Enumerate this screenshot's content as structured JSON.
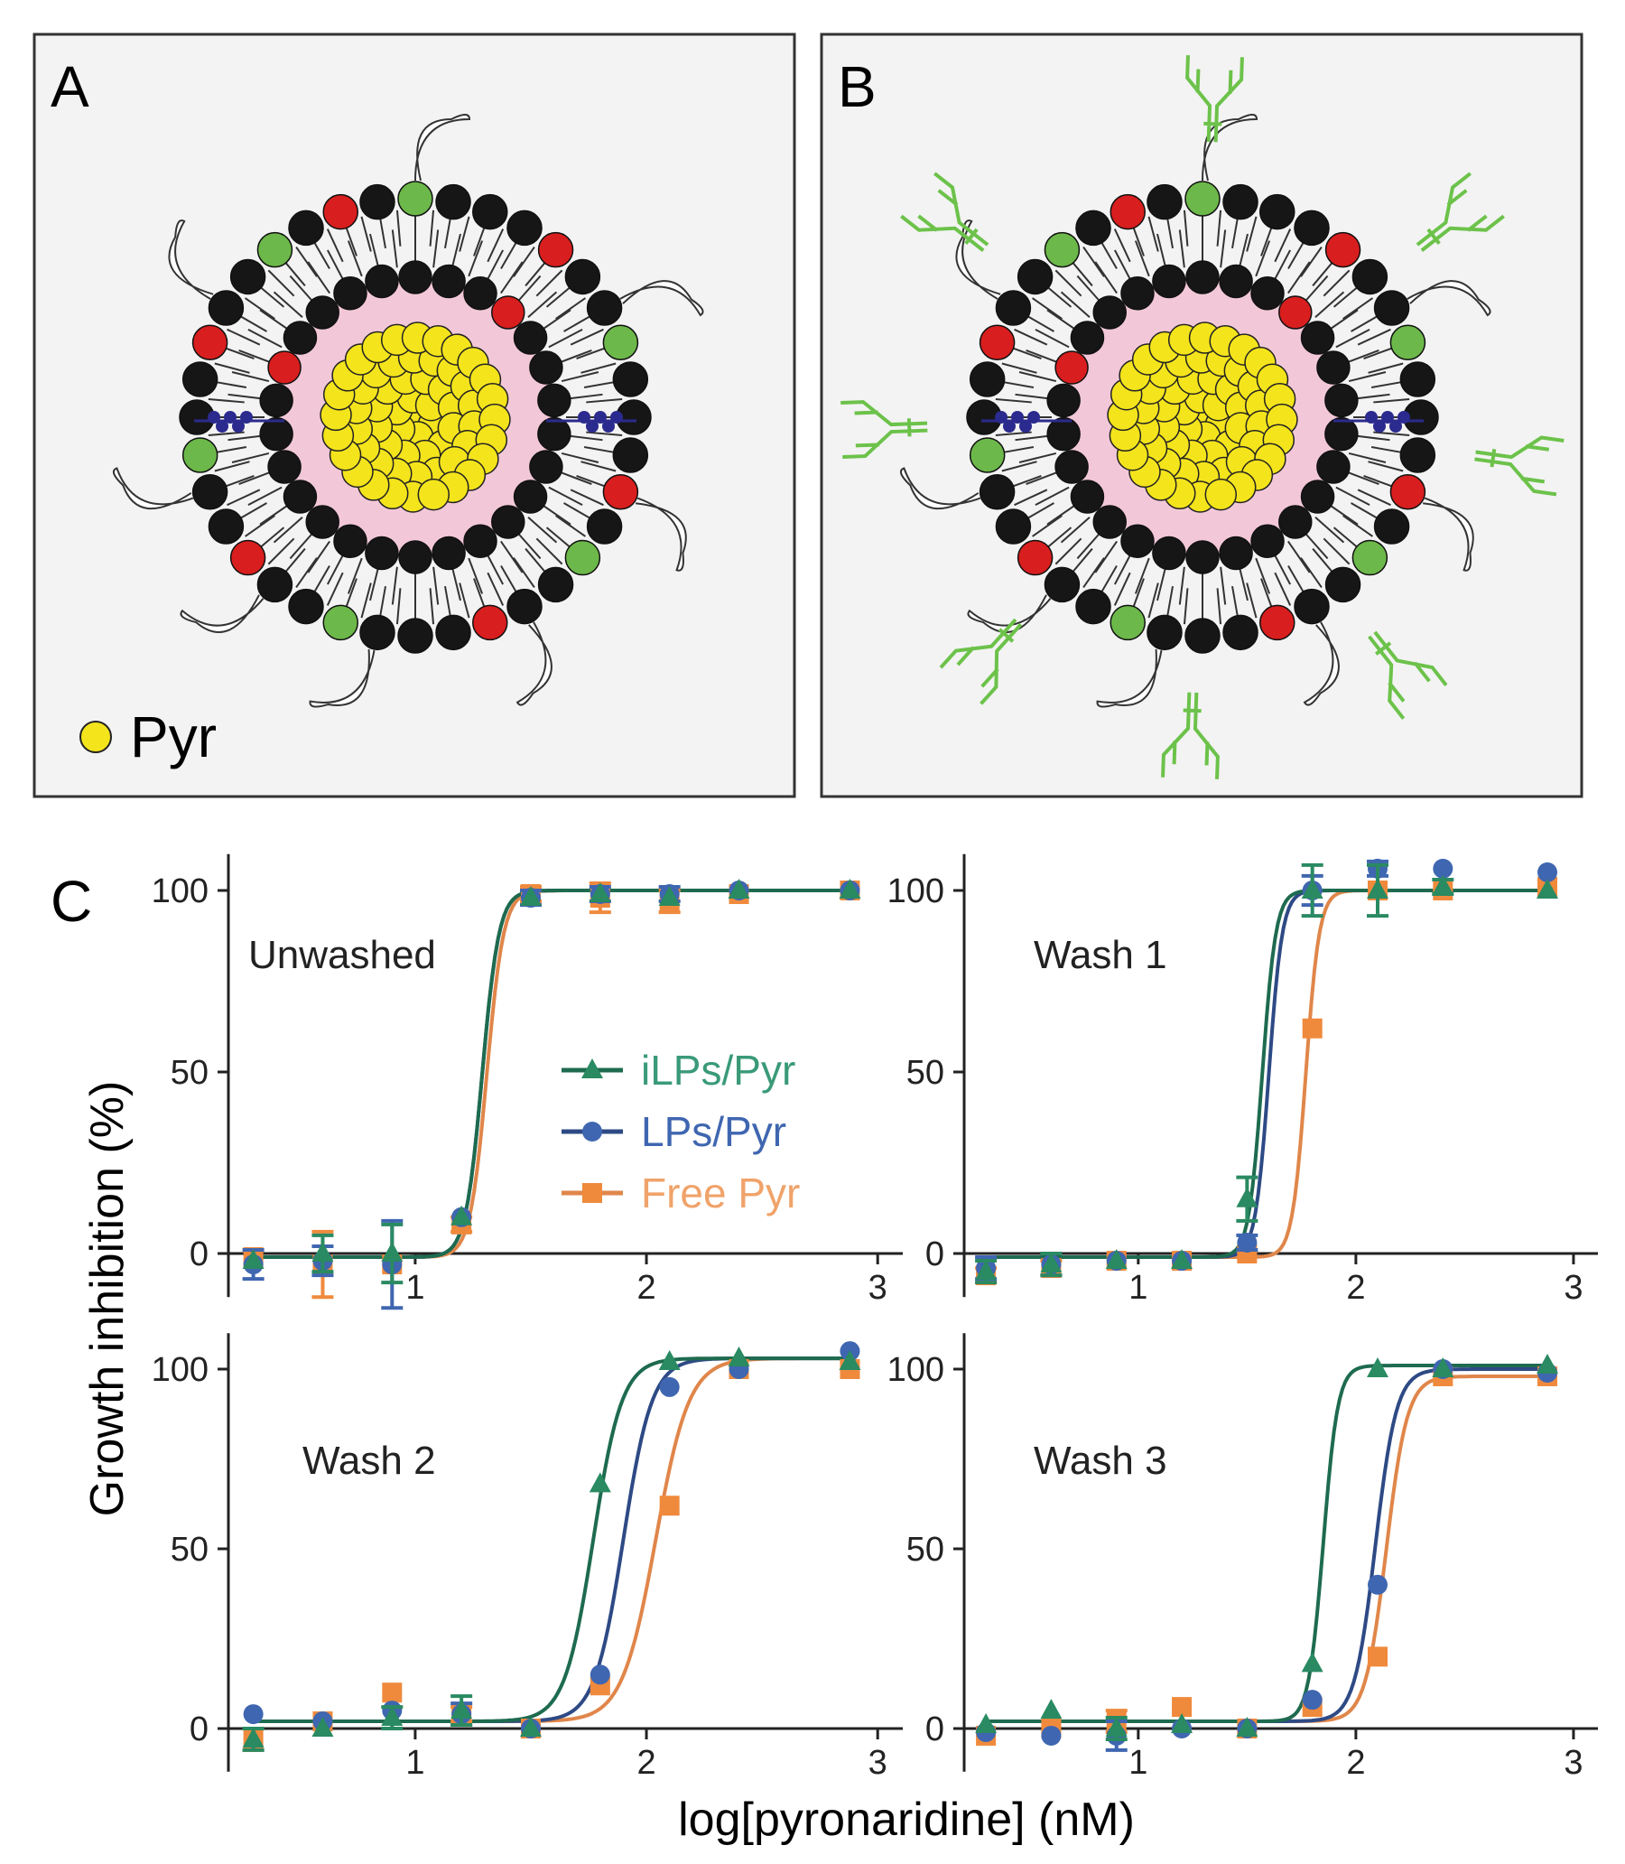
{
  "panels": {
    "A": {
      "label": "A",
      "legend_text": "Pyr"
    },
    "B": {
      "label": "B"
    },
    "C": {
      "label": "C"
    }
  },
  "colors": {
    "ilps": "#1e6b4f",
    "lps": "#2e4a85",
    "free": "#e0864a",
    "ilps_marker": "#2a8a62",
    "lps_marker": "#3f66b0",
    "free_marker": "#ef8a3d",
    "membrane_head": "#161616",
    "head_red": "#d81e1e",
    "head_green": "#6cb84a",
    "core": "#f2c8d8",
    "pyr": "#f4e41c",
    "antibody": "#6cc24a",
    "anchor": "#2b2a8e",
    "panel_bg": "#f3f3f3"
  },
  "chart_data": {
    "type": "scatter",
    "fit": "sigmoid",
    "xlabel": "log[pyronaridine] (nM)",
    "ylabel": "Growth inhibition (%)",
    "xlim": [
      0.2,
      3.05
    ],
    "ylim": [
      -12,
      110
    ],
    "xticks": [
      "1",
      "2",
      "3"
    ],
    "yticks": [
      "0",
      "50",
      "100"
    ],
    "legend": [
      {
        "key": "ilps",
        "label": "iLPs/Pyr",
        "marker": "triangle"
      },
      {
        "key": "lps",
        "label": "LPs/Pyr",
        "marker": "circle"
      },
      {
        "key": "free",
        "label": "Free Pyr",
        "marker": "square"
      }
    ],
    "subplots": [
      {
        "title": "Unwashed",
        "x": [
          0.3,
          0.6,
          0.9,
          1.2,
          1.5,
          1.8,
          2.1,
          2.4,
          2.88
        ],
        "series": [
          {
            "key": "ilps",
            "values": [
              -2,
              0,
              0,
              10,
              98,
              99,
              98,
              100,
              100
            ],
            "errors": [
              0,
              5,
              8,
              0,
              0,
              0,
              0,
              0,
              0
            ],
            "fit": {
              "bottom": -1,
              "top": 100,
              "ec50": 1.29,
              "hill": 12
            }
          },
          {
            "key": "lps",
            "values": [
              -3,
              -2,
              -3,
              10,
              98,
              99,
              99,
              100,
              100
            ],
            "errors": [
              4,
              4,
              12,
              0,
              2,
              2,
              2,
              0,
              0
            ],
            "fit": {
              "bottom": -1,
              "top": 100,
              "ec50": 1.29,
              "hill": 12
            }
          },
          {
            "key": "free",
            "values": [
              -1,
              -3,
              -3,
              8,
              99,
              98,
              97,
              99,
              100
            ],
            "errors": [
              0,
              9,
              0,
              2,
              2,
              4,
              3,
              0,
              0
            ],
            "fit": {
              "bottom": -1,
              "top": 100,
              "ec50": 1.31,
              "hill": 12
            }
          }
        ]
      },
      {
        "title": "Wash 1",
        "x": [
          0.3,
          0.6,
          0.9,
          1.2,
          1.5,
          1.8,
          2.1,
          2.4,
          2.88
        ],
        "series": [
          {
            "key": "ilps",
            "values": [
              -5,
              -3,
              -2,
              -2,
              15,
              100,
              100,
              101,
              100
            ],
            "errors": [
              3,
              3,
              0,
              0,
              6,
              7,
              7,
              2,
              0
            ],
            "fit": {
              "bottom": -1,
              "top": 100,
              "ec50": 1.57,
              "hill": 14
            }
          },
          {
            "key": "lps",
            "values": [
              -4,
              -3,
              -2,
              -2,
              3,
              100,
              106,
              106,
              105
            ],
            "errors": [
              3,
              3,
              0,
              0,
              2,
              4,
              2,
              0,
              0
            ],
            "fit": {
              "bottom": -1,
              "top": 100,
              "ec50": 1.6,
              "hill": 14
            }
          },
          {
            "key": "free",
            "values": [
              -6,
              -4,
              -2,
              -2,
              0,
              62,
              100,
              100,
              101
            ],
            "errors": [
              2,
              2,
              0,
              0,
              0,
              0,
              0,
              0,
              0
            ],
            "fit": {
              "bottom": -1,
              "top": 100,
              "ec50": 1.77,
              "hill": 14
            }
          }
        ]
      },
      {
        "title": "Wash 2",
        "x": [
          0.3,
          0.6,
          0.9,
          1.2,
          1.5,
          1.8,
          2.1,
          2.4,
          2.88
        ],
        "series": [
          {
            "key": "ilps",
            "values": [
              -3,
              0,
              3,
              5,
              0,
              68,
              102,
              103,
              102
            ],
            "errors": [
              3,
              0,
              3,
              4,
              0,
              0,
              0,
              0,
              0
            ],
            "fit": {
              "bottom": 2,
              "top": 103,
              "ec50": 1.77,
              "hill": 7
            }
          },
          {
            "key": "lps",
            "values": [
              4,
              2,
              5,
              4,
              0,
              15,
              95,
              100,
              105
            ],
            "errors": [
              0,
              0,
              0,
              3,
              0,
              0,
              0,
              0,
              0
            ],
            "fit": {
              "bottom": 2,
              "top": 103,
              "ec50": 1.9,
              "hill": 7
            }
          },
          {
            "key": "free",
            "values": [
              -3,
              2,
              10,
              4,
              0,
              12,
              62,
              100,
              100
            ],
            "errors": [
              3,
              0,
              0,
              2,
              0,
              0,
              0,
              0,
              0
            ],
            "fit": {
              "bottom": 2,
              "top": 103,
              "ec50": 2.04,
              "hill": 6
            }
          }
        ]
      },
      {
        "title": "Wash 3",
        "x": [
          0.3,
          0.6,
          0.9,
          1.2,
          1.5,
          1.8,
          2.1,
          2.4,
          2.88
        ],
        "series": [
          {
            "key": "ilps",
            "values": [
              1,
              5,
              0,
              1,
              0,
              18,
              100,
              100,
              101
            ],
            "errors": [
              0,
              0,
              3,
              0,
              0,
              0,
              0,
              0,
              0
            ],
            "fit": {
              "bottom": 2,
              "top": 101,
              "ec50": 1.85,
              "hill": 13
            }
          },
          {
            "key": "lps",
            "values": [
              -1,
              -2,
              -2,
              0,
              0,
              8,
              40,
              100,
              99
            ],
            "errors": [
              0,
              0,
              4,
              0,
              0,
              0,
              0,
              0,
              0
            ],
            "fit": {
              "bottom": 2,
              "top": 100,
              "ec50": 2.09,
              "hill": 9
            }
          },
          {
            "key": "free",
            "values": [
              -2,
              0,
              2,
              6,
              0,
              6,
              20,
              98,
              98
            ],
            "errors": [
              0,
              0,
              3,
              0,
              0,
              0,
              0,
              0,
              0
            ],
            "fit": {
              "bottom": 2,
              "top": 98,
              "ec50": 2.14,
              "hill": 9
            }
          }
        ]
      }
    ]
  }
}
